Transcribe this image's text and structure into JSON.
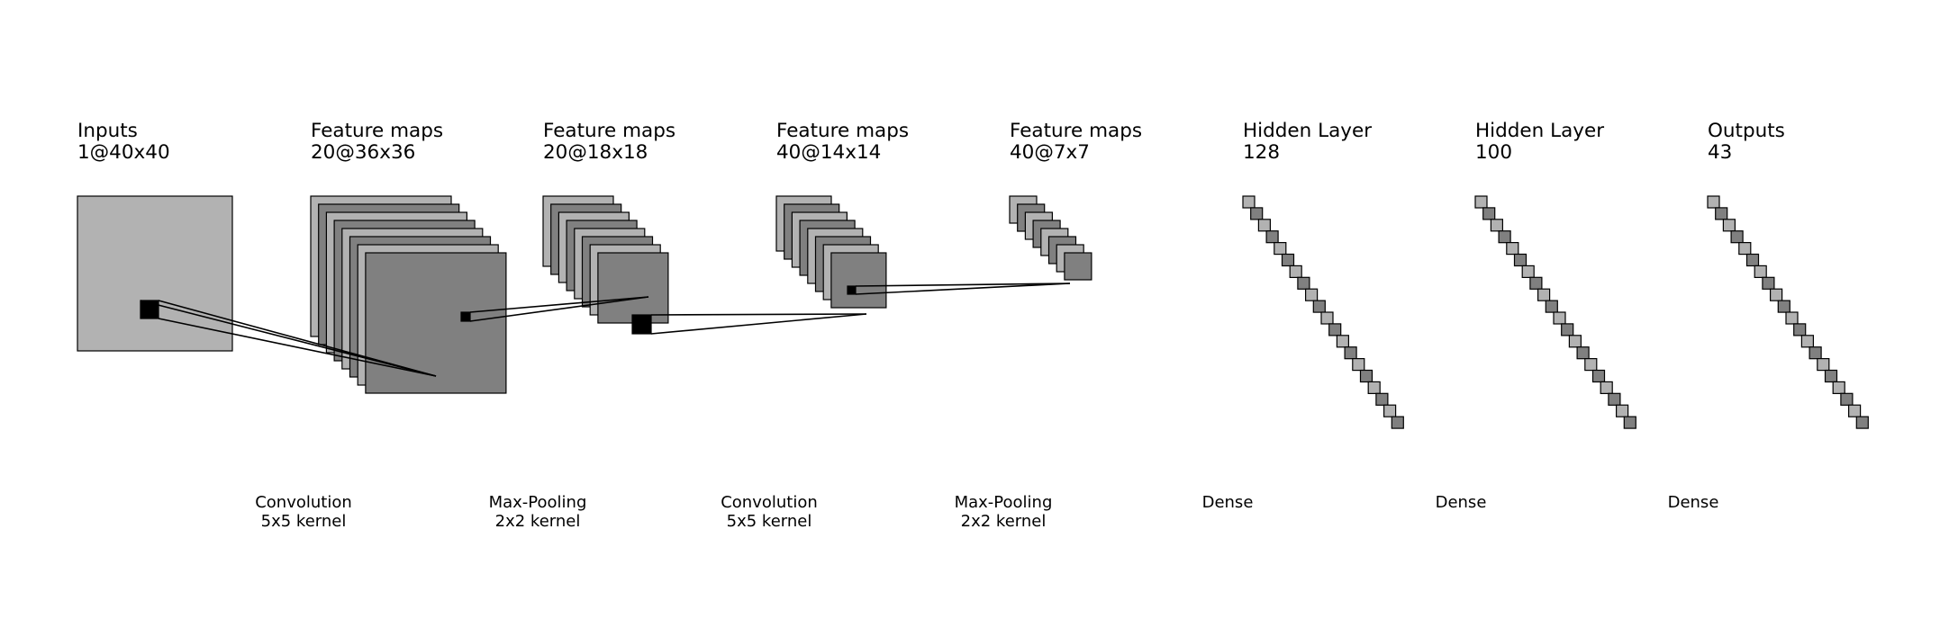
{
  "layers": [
    {
      "title": "Inputs",
      "shape": "1@40x40",
      "maps": 1
    },
    {
      "title": "Feature maps",
      "shape": "20@36x36",
      "maps": 8
    },
    {
      "title": "Feature maps",
      "shape": "20@18x18",
      "maps": 8
    },
    {
      "title": "Feature maps",
      "shape": "40@14x14",
      "maps": 8
    },
    {
      "title": "Feature maps",
      "shape": "40@7x7",
      "maps": 8
    },
    {
      "title": "Hidden Layer",
      "shape": "128",
      "maps": 20
    },
    {
      "title": "Hidden Layer",
      "shape": "100",
      "maps": 20
    },
    {
      "title": "Outputs",
      "shape": "43",
      "maps": 20
    }
  ],
  "operations": [
    {
      "name": "Convolution",
      "detail": "5x5 kernel"
    },
    {
      "name": "Max-Pooling",
      "detail": "2x2 kernel"
    },
    {
      "name": "Convolution",
      "detail": "5x5 kernel"
    },
    {
      "name": "Max-Pooling",
      "detail": "2x2 kernel"
    },
    {
      "name": "Dense",
      "detail": ""
    },
    {
      "name": "Dense",
      "detail": ""
    },
    {
      "name": "Dense",
      "detail": ""
    }
  ],
  "colors": {
    "map_light": "#b2b2b2",
    "map_dark": "#808080",
    "kernel": "#000000",
    "outline": "#000000"
  }
}
